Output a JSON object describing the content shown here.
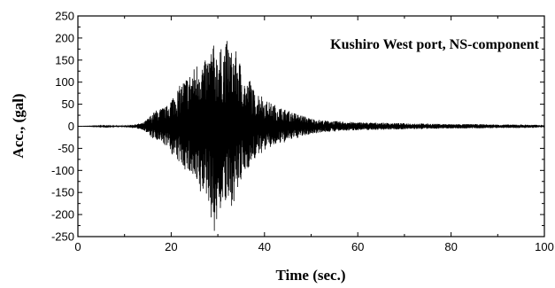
{
  "chart_data": {
    "type": "line",
    "title": "",
    "annotation": "Kushiro West port, NS-component",
    "xlabel": "Time (sec.)",
    "ylabel": "Acc., (gal)",
    "xlim": [
      0,
      100
    ],
    "ylim": [
      -250,
      250
    ],
    "xticks": [
      0,
      20,
      40,
      60,
      80,
      100
    ],
    "yticks": [
      250,
      200,
      150,
      100,
      50,
      0,
      -50,
      -100,
      -150,
      -200,
      -250
    ],
    "grid": false,
    "line_color": "#000000",
    "series": [
      {
        "values_note_free": true,
        "x": [
          0,
          5,
          10,
          12,
          14,
          15,
          16,
          17,
          18,
          19,
          20,
          21,
          22,
          23,
          24,
          25,
          26,
          27,
          28,
          29,
          29.5,
          30,
          31,
          32,
          33,
          34,
          35,
          36,
          37,
          38,
          39,
          40,
          42,
          44,
          46,
          48,
          50,
          52,
          55,
          58,
          60,
          65,
          70,
          75,
          80,
          85,
          90,
          95,
          100
        ],
        "y_upper": [
          0,
          1,
          2,
          4,
          8,
          18,
          30,
          38,
          42,
          45,
          65,
          80,
          95,
          110,
          120,
          135,
          155,
          145,
          160,
          190,
          165,
          180,
          175,
          195,
          170,
          170,
          140,
          95,
          110,
          70,
          80,
          60,
          50,
          40,
          32,
          25,
          18,
          14,
          12,
          10,
          9,
          8,
          7,
          6,
          5,
          5,
          4,
          4,
          3
        ],
        "y_lower": [
          0,
          -1,
          -2,
          -4,
          -8,
          -18,
          -28,
          -35,
          -40,
          -45,
          -60,
          -80,
          -85,
          -100,
          -110,
          -130,
          -165,
          -150,
          -170,
          -240,
          -250,
          -210,
          -175,
          -190,
          -180,
          -160,
          -130,
          -100,
          -90,
          -75,
          -65,
          -55,
          -45,
          -38,
          -30,
          -24,
          -18,
          -14,
          -12,
          -10,
          -9,
          -8,
          -7,
          -6,
          -5,
          -5,
          -4,
          -4,
          -3
        ]
      }
    ]
  }
}
